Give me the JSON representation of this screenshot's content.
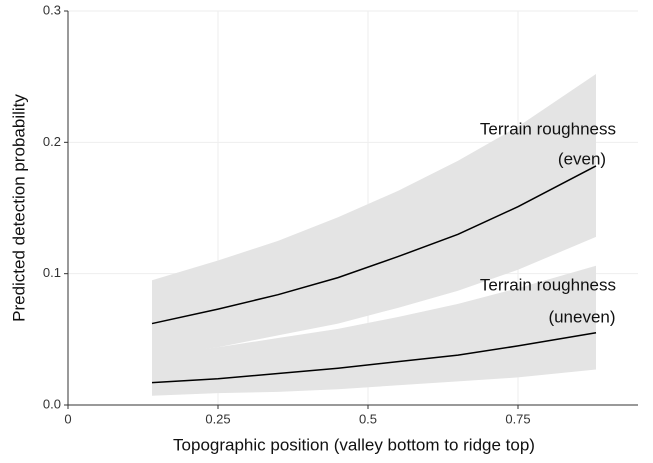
{
  "chart_data": {
    "type": "line",
    "x_label": "Topographic position (valley bottom to ridge top)",
    "y_label": "Predicted detection probability",
    "x": [
      0.14,
      0.25,
      0.35,
      0.45,
      0.55,
      0.65,
      0.75,
      0.88
    ],
    "series": [
      {
        "label": [
          "Terrain roughness",
          "(even)"
        ],
        "color": "#000000",
        "band_color": "#e4e4e4",
        "values": [
          0.062,
          0.073,
          0.084,
          0.097,
          0.113,
          0.13,
          0.151,
          0.182
        ],
        "lower": [
          0.037,
          0.044,
          0.053,
          0.062,
          0.074,
          0.087,
          0.103,
          0.128
        ],
        "upper": [
          0.095,
          0.11,
          0.125,
          0.143,
          0.163,
          0.186,
          0.212,
          0.252
        ]
      },
      {
        "label": [
          "Terrain roughness",
          "(uneven)"
        ],
        "color": "#000000",
        "band_color": "#e4e4e4",
        "values": [
          0.017,
          0.02,
          0.024,
          0.028,
          0.033,
          0.038,
          0.045,
          0.055
        ],
        "lower": [
          0.007,
          0.009,
          0.01,
          0.012,
          0.015,
          0.018,
          0.021,
          0.027
        ],
        "upper": [
          0.038,
          0.044,
          0.051,
          0.058,
          0.067,
          0.077,
          0.089,
          0.106
        ]
      }
    ],
    "xlim": [
      0,
      0.95
    ],
    "xticks": [
      0,
      0.25,
      0.5,
      0.75
    ],
    "ylim": [
      0,
      0.3
    ],
    "yticks": [
      {
        "value": 0,
        "label": "0.0"
      },
      0.1,
      0.2,
      0.3
    ],
    "grid": true
  }
}
